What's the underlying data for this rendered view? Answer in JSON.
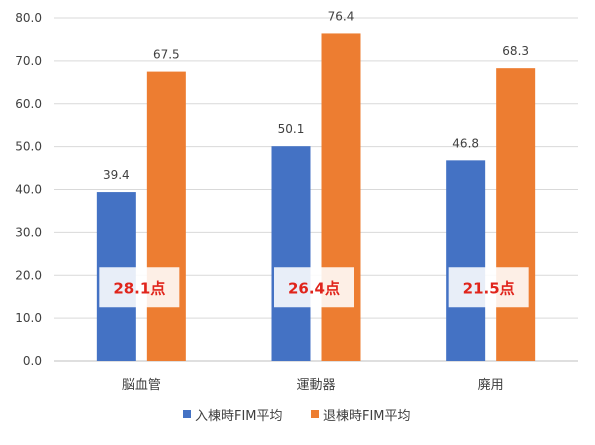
{
  "chart_data": {
    "type": "bar",
    "categories": [
      "脳血管",
      "運動器",
      "廃用"
    ],
    "series": [
      {
        "name": "入棟時FIM平均",
        "color": "#4472c4",
        "values": [
          39.4,
          50.1,
          46.8
        ]
      },
      {
        "name": "退棟時FIM平均",
        "color": "#ed7d31",
        "values": [
          67.5,
          76.4,
          68.3
        ]
      }
    ],
    "data_labels": {
      "series_0": [
        "39.4",
        "50.1",
        "46.8"
      ],
      "series_1": [
        "67.5",
        "76.4",
        "68.3"
      ]
    },
    "y_ticks": [
      "0.0",
      "10.0",
      "20.0",
      "30.0",
      "40.0",
      "50.0",
      "60.0",
      "70.0",
      "80.0"
    ],
    "ylim": [
      0,
      80
    ],
    "grid": true,
    "legend": "bottom",
    "annotations": [
      "28.1点",
      "26.4点",
      "21.5点"
    ],
    "annotation_color": "#e0241b"
  }
}
